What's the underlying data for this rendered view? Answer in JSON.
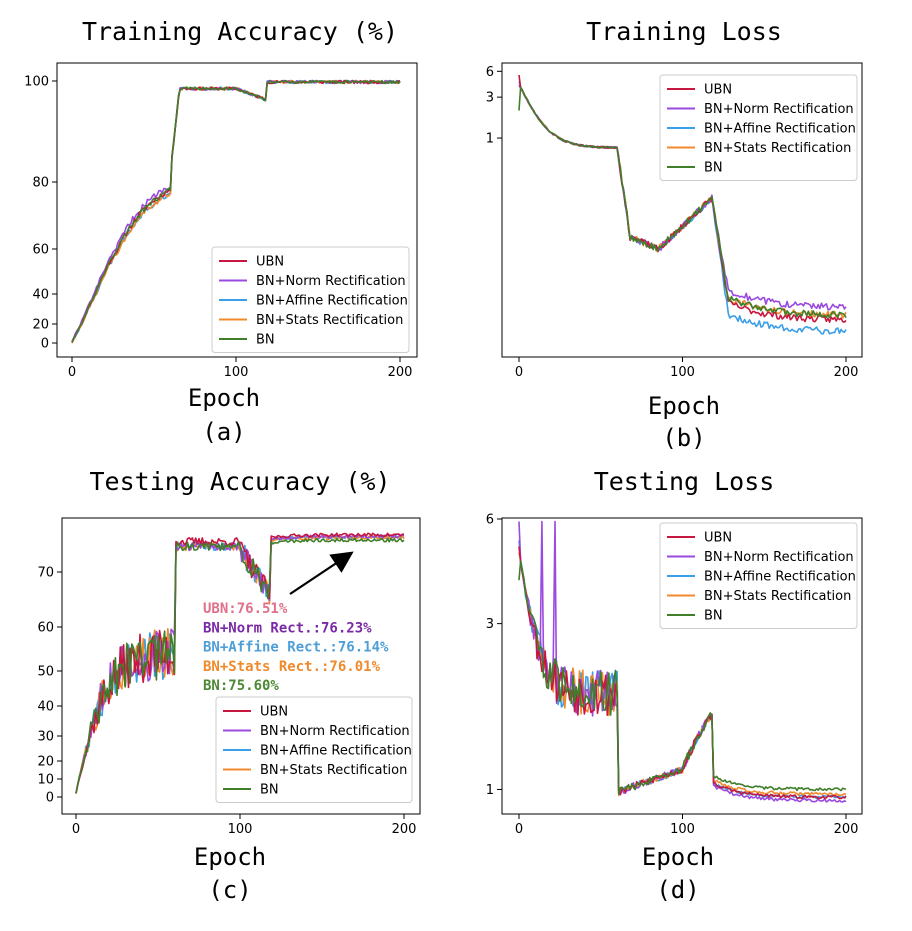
{
  "figure": {
    "colors": {
      "UBN": "#c7163f",
      "BN+Norm Rectification": "#9b4ae0",
      "BN+Affine Rectification": "#3a9ee8",
      "BN+Stats Rectification": "#f08a2c",
      "BN": "#3f7f2a"
    }
  },
  "chart_data": [
    {
      "type": "line",
      "panel": "(a)",
      "title": "Training Accuracy (%)",
      "xlabel": "Epoch",
      "ylabel": "",
      "xlim": [
        0,
        200
      ],
      "ylim": [
        0,
        100
      ],
      "yscale": "custom",
      "xticks": [
        "0",
        "100",
        "200"
      ],
      "yticks": [
        "0",
        "20",
        "40",
        "60",
        "80",
        "100"
      ],
      "legend": [
        "UBN",
        "BN+Norm Rectification",
        "BN+Affine Rectification",
        "BN+Stats Rectification",
        "BN"
      ],
      "legend_position": "lower-right",
      "curve": "train_acc",
      "series_final": {
        "UBN": 99.8,
        "BN+Norm Rectification": 99.8,
        "BN+Affine Rectification": 99.8,
        "BN+Stats Rectification": 99.8,
        "BN": 99.8
      }
    },
    {
      "type": "line",
      "panel": "(b)",
      "title": "Training Loss",
      "xlabel": "Epoch",
      "ylabel": "",
      "xlim": [
        0,
        200
      ],
      "yscale": "log",
      "xticks": [
        "0",
        "100",
        "200"
      ],
      "yticks": [
        "1",
        "3",
        "6"
      ],
      "legend": [
        "UBN",
        "BN+Norm Rectification",
        "BN+Affine Rectification",
        "BN+Stats Rectification",
        "BN"
      ],
      "legend_position": "upper-right",
      "curve": "train_loss",
      "series_final": {
        "UBN": 0.0075,
        "BN+Norm Rectification": 0.0105,
        "BN+Affine Rectification": 0.0055,
        "BN+Stats Rectification": 0.0085,
        "BN": 0.0085
      }
    },
    {
      "type": "line",
      "panel": "(c)",
      "title": "Testing Accuracy (%)",
      "xlabel": "Epoch",
      "ylabel": "",
      "xlim": [
        0,
        200
      ],
      "ylim": [
        0,
        77
      ],
      "yscale": "custom",
      "xticks": [
        "0",
        "100",
        "200"
      ],
      "yticks": [
        "0",
        "10",
        "20",
        "30",
        "40",
        "50",
        "60",
        "70"
      ],
      "legend": [
        "UBN",
        "BN+Norm Rectification",
        "BN+Affine Rectification",
        "BN+Stats Rectification",
        "BN"
      ],
      "legend_position": "lower-right",
      "curve": "test_acc",
      "annotations": [
        {
          "text": "UBN:76.51%",
          "series": "UBN"
        },
        {
          "text": "BN+Norm Rect.:76.23%",
          "series": "BN+Norm Rectification"
        },
        {
          "text": "BN+Affine Rect.:76.14%",
          "series": "BN+Affine Rectification"
        },
        {
          "text": "BN+Stats Rect.:76.01%",
          "series": "BN+Stats Rectification"
        },
        {
          "text": "BN:75.60%",
          "series": "BN"
        }
      ],
      "series_final": {
        "UBN": 76.51,
        "BN+Norm Rectification": 76.23,
        "BN+Affine Rectification": 76.14,
        "BN+Stats Rectification": 76.01,
        "BN": 75.6
      }
    },
    {
      "type": "line",
      "panel": "(d)",
      "title": "Testing Loss",
      "xlabel": "Epoch",
      "ylabel": "",
      "xlim": [
        0,
        200
      ],
      "yscale": "log",
      "xticks": [
        "0",
        "100",
        "200"
      ],
      "yticks": [
        "1",
        "3",
        "6"
      ],
      "legend": [
        "UBN",
        "BN+Norm Rectification",
        "BN+Affine Rectification",
        "BN+Stats Rectification",
        "BN"
      ],
      "legend_position": "upper-right",
      "curve": "test_loss",
      "series_final": {
        "UBN": 0.95,
        "BN+Norm Rectification": 0.93,
        "BN+Affine Rectification": 0.95,
        "BN+Stats Rectification": 0.97,
        "BN": 1.0
      }
    }
  ]
}
